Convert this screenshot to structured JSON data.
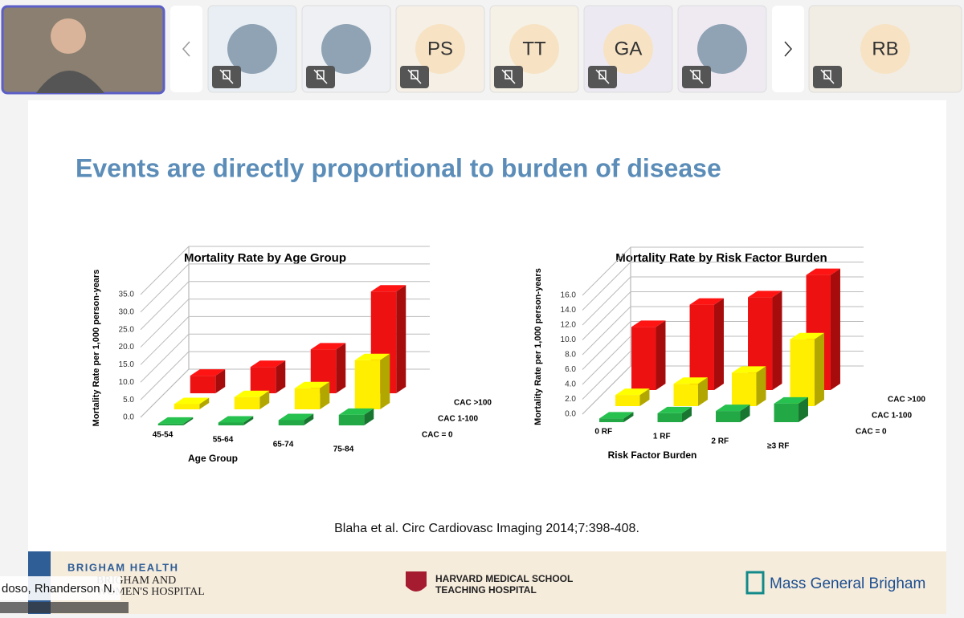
{
  "meeting": {
    "participant_initials": [
      "PS",
      "TT",
      "GA",
      "RB"
    ],
    "speaker_name": "doso, Rhanderson N."
  },
  "slide": {
    "title": "Events are directly proportional to burden of disease",
    "citation": "Blaha et al. Circ Cardiovasc Imaging 2014;7:398-408.",
    "footer": {
      "brand": "BRIGHAM HEALTH",
      "hospital_line1": "BRIGHAM AND",
      "hospital_line2": "WOMEN'S HOSPITAL",
      "harvard_line1": "HARVARD MEDICAL SCHOOL",
      "harvard_line2": "TEACHING HOSPITAL",
      "mgb": "Mass General Brigham"
    }
  },
  "chart_data": [
    {
      "type": "bar3d",
      "title": "Mortality Rate by Age Group",
      "y_label": "Mortality Rate per 1,000 person-years",
      "x_label": "Age Group",
      "categories": [
        "45-54",
        "55-64",
        "65-74",
        "75-84"
      ],
      "series": [
        {
          "name": "CAC = 0",
          "color": "#22a845",
          "values": [
            0.5,
            0.8,
            1.5,
            3.0
          ]
        },
        {
          "name": "CAC 1-100",
          "color": "#ffee00",
          "values": [
            1.5,
            3.5,
            6.0,
            14.0
          ]
        },
        {
          "name": "CAC >100",
          "color": "#ee1111",
          "values": [
            5.0,
            7.5,
            12.5,
            29.0
          ]
        }
      ],
      "ylim": [
        0,
        35
      ],
      "yticks": [
        {
          "value": 0,
          "label": "0.0"
        },
        {
          "value": 5,
          "label": "5.0"
        },
        {
          "value": 10,
          "label": "10.0"
        },
        {
          "value": 15,
          "label": "15.0"
        },
        {
          "value": 20,
          "label": "20.0"
        },
        {
          "value": 25,
          "label": "25.0"
        },
        {
          "value": 30,
          "label": "30.0"
        },
        {
          "value": 35,
          "label": "35.0"
        }
      ]
    },
    {
      "type": "bar3d",
      "title": "Mortality Rate by Risk Factor Burden",
      "y_label": "Mortality Rate per 1,000 person-years",
      "x_label": "Risk Factor Burden",
      "categories": [
        "0 RF",
        "1 RF",
        "2 RF",
        "≥3 RF"
      ],
      "series": [
        {
          "name": "CAC = 0",
          "color": "#22a845",
          "values": [
            0.5,
            1.2,
            1.5,
            2.5
          ]
        },
        {
          "name": "CAC 1-100",
          "color": "#ffee00",
          "values": [
            1.5,
            3.0,
            4.5,
            9.0
          ]
        },
        {
          "name": "CAC >100",
          "color": "#ee1111",
          "values": [
            8.5,
            11.5,
            12.5,
            15.5
          ]
        }
      ],
      "ylim": [
        0,
        16
      ],
      "yticks": [
        {
          "value": 0,
          "label": "0.0"
        },
        {
          "value": 2,
          "label": "2.0"
        },
        {
          "value": 4,
          "label": "4.0"
        },
        {
          "value": 6,
          "label": "6.0"
        },
        {
          "value": 8,
          "label": "8.0"
        },
        {
          "value": 10,
          "label": "10.0"
        },
        {
          "value": 12,
          "label": "12.0"
        },
        {
          "value": 14,
          "label": "14.0"
        },
        {
          "value": 16,
          "label": "16.0"
        }
      ]
    }
  ]
}
